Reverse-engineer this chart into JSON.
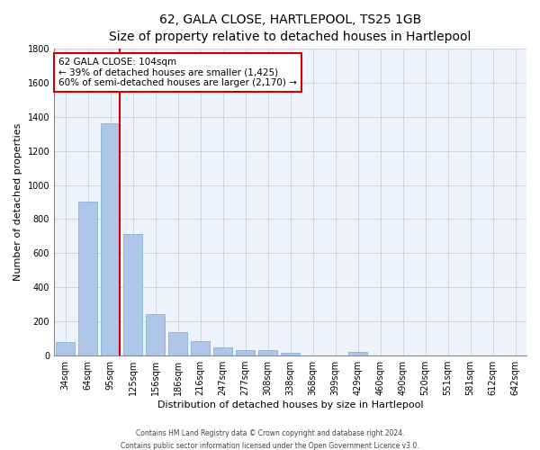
{
  "title": "62, GALA CLOSE, HARTLEPOOL, TS25 1GB",
  "subtitle": "Size of property relative to detached houses in Hartlepool",
  "xlabel": "Distribution of detached houses by size in Hartlepool",
  "ylabel": "Number of detached properties",
  "categories": [
    "34sqm",
    "64sqm",
    "95sqm",
    "125sqm",
    "156sqm",
    "186sqm",
    "216sqm",
    "247sqm",
    "277sqm",
    "308sqm",
    "338sqm",
    "368sqm",
    "399sqm",
    "429sqm",
    "460sqm",
    "490sqm",
    "520sqm",
    "551sqm",
    "581sqm",
    "612sqm",
    "642sqm"
  ],
  "values": [
    80,
    905,
    1360,
    710,
    245,
    140,
    85,
    50,
    30,
    30,
    18,
    0,
    0,
    20,
    0,
    0,
    0,
    0,
    0,
    0,
    0
  ],
  "bar_color": "#aec6e8",
  "bar_edge_color": "#7bafd4",
  "vline_color": "#cc0000",
  "vline_pos": 2.42,
  "annotation_text": "62 GALA CLOSE: 104sqm\n← 39% of detached houses are smaller (1,425)\n60% of semi-detached houses are larger (2,170) →",
  "annotation_box_color": "#ffffff",
  "annotation_box_edge_color": "#cc0000",
  "ylim": [
    0,
    1800
  ],
  "yticks": [
    0,
    200,
    400,
    600,
    800,
    1000,
    1200,
    1400,
    1600,
    1800
  ],
  "footer_line1": "Contains HM Land Registry data © Crown copyright and database right 2024.",
  "footer_line2": "Contains public sector information licensed under the Open Government Licence v3.0.",
  "bg_color": "#eef2fb",
  "grid_color": "#c8cfe0",
  "title_fontsize": 10,
  "axis_label_fontsize": 8,
  "tick_fontsize": 7,
  "annot_fontsize": 7.5,
  "footer_fontsize": 5.5
}
